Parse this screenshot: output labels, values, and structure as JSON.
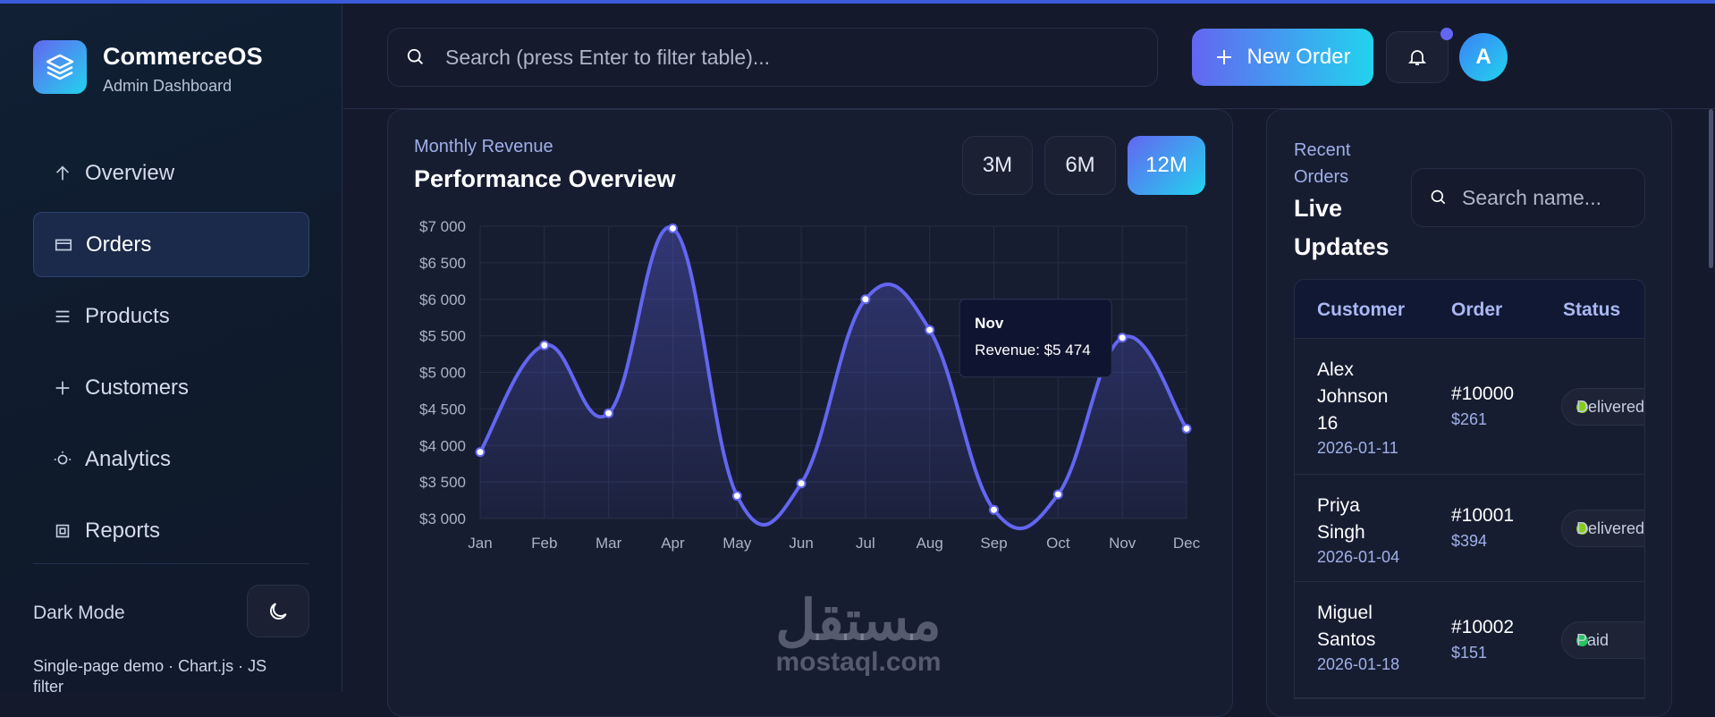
{
  "brand": {
    "name": "CommerceOS",
    "tagline": "Admin Dashboard"
  },
  "nav": [
    "Overview",
    "Orders",
    "Products",
    "Customers",
    "Analytics",
    "Reports"
  ],
  "sidebar_footer": {
    "dark_mode": "Dark Mode",
    "note": "Single-page demo · Chart.js · JS filter"
  },
  "header": {
    "search_placeholder": "Search (press Enter to filter table)...",
    "new_order": "New Order",
    "avatar": "A"
  },
  "chart_data": {
    "type": "line",
    "subtitle": "Monthly Revenue",
    "title": "Performance Overview",
    "ranges": [
      "3M",
      "6M",
      "12M"
    ],
    "categories": [
      "Jan",
      "Feb",
      "Mar",
      "Apr",
      "May",
      "Jun",
      "Jul",
      "Aug",
      "Sep",
      "Oct",
      "Nov",
      "Dec"
    ],
    "values": [
      3910,
      5370,
      4440,
      6970,
      3310,
      3480,
      6000,
      5580,
      3120,
      3330,
      5474,
      4230
    ],
    "color": "#6366f1",
    "ylim": [
      3000,
      7000
    ],
    "yticks": [
      {
        "value": 3000,
        "label": "$3 000"
      },
      {
        "value": 3500,
        "label": "$3 500"
      },
      {
        "value": 4000,
        "label": "$4 000"
      },
      {
        "value": 4500,
        "label": "$4 500"
      },
      {
        "value": 5000,
        "label": "$5 000"
      },
      {
        "value": 5500,
        "label": "$5 500"
      },
      {
        "value": 6000,
        "label": "$6 000"
      },
      {
        "value": 6500,
        "label": "$6 500"
      },
      {
        "value": 7000,
        "label": "$7 000"
      }
    ],
    "grid": true,
    "tooltip": {
      "title": "Nov",
      "label": "Revenue: $5 474"
    }
  },
  "orders": {
    "subtitle": "Recent Orders",
    "title": "Live Updates",
    "search_placeholder": "Search name...",
    "columns": [
      "Customer",
      "Order",
      "Status"
    ],
    "rows": [
      {
        "customer": "Alex Johnson 16",
        "date": "2026-01-11",
        "order": "#10000",
        "amount": "$261",
        "status": "Delivered",
        "dot": "#84cc16"
      },
      {
        "customer": "Priya Singh",
        "date": "2026-01-04",
        "order": "#10001",
        "amount": "$394",
        "status": "Delivered",
        "dot": "#84cc16"
      },
      {
        "customer": "Miguel Santos",
        "date": "2026-01-18",
        "order": "#10002",
        "amount": "$151",
        "status": "Paid",
        "dot": "#22c55e"
      }
    ]
  },
  "watermark": {
    "arabic": "مستقل",
    "latin": "mostaql.com"
  }
}
